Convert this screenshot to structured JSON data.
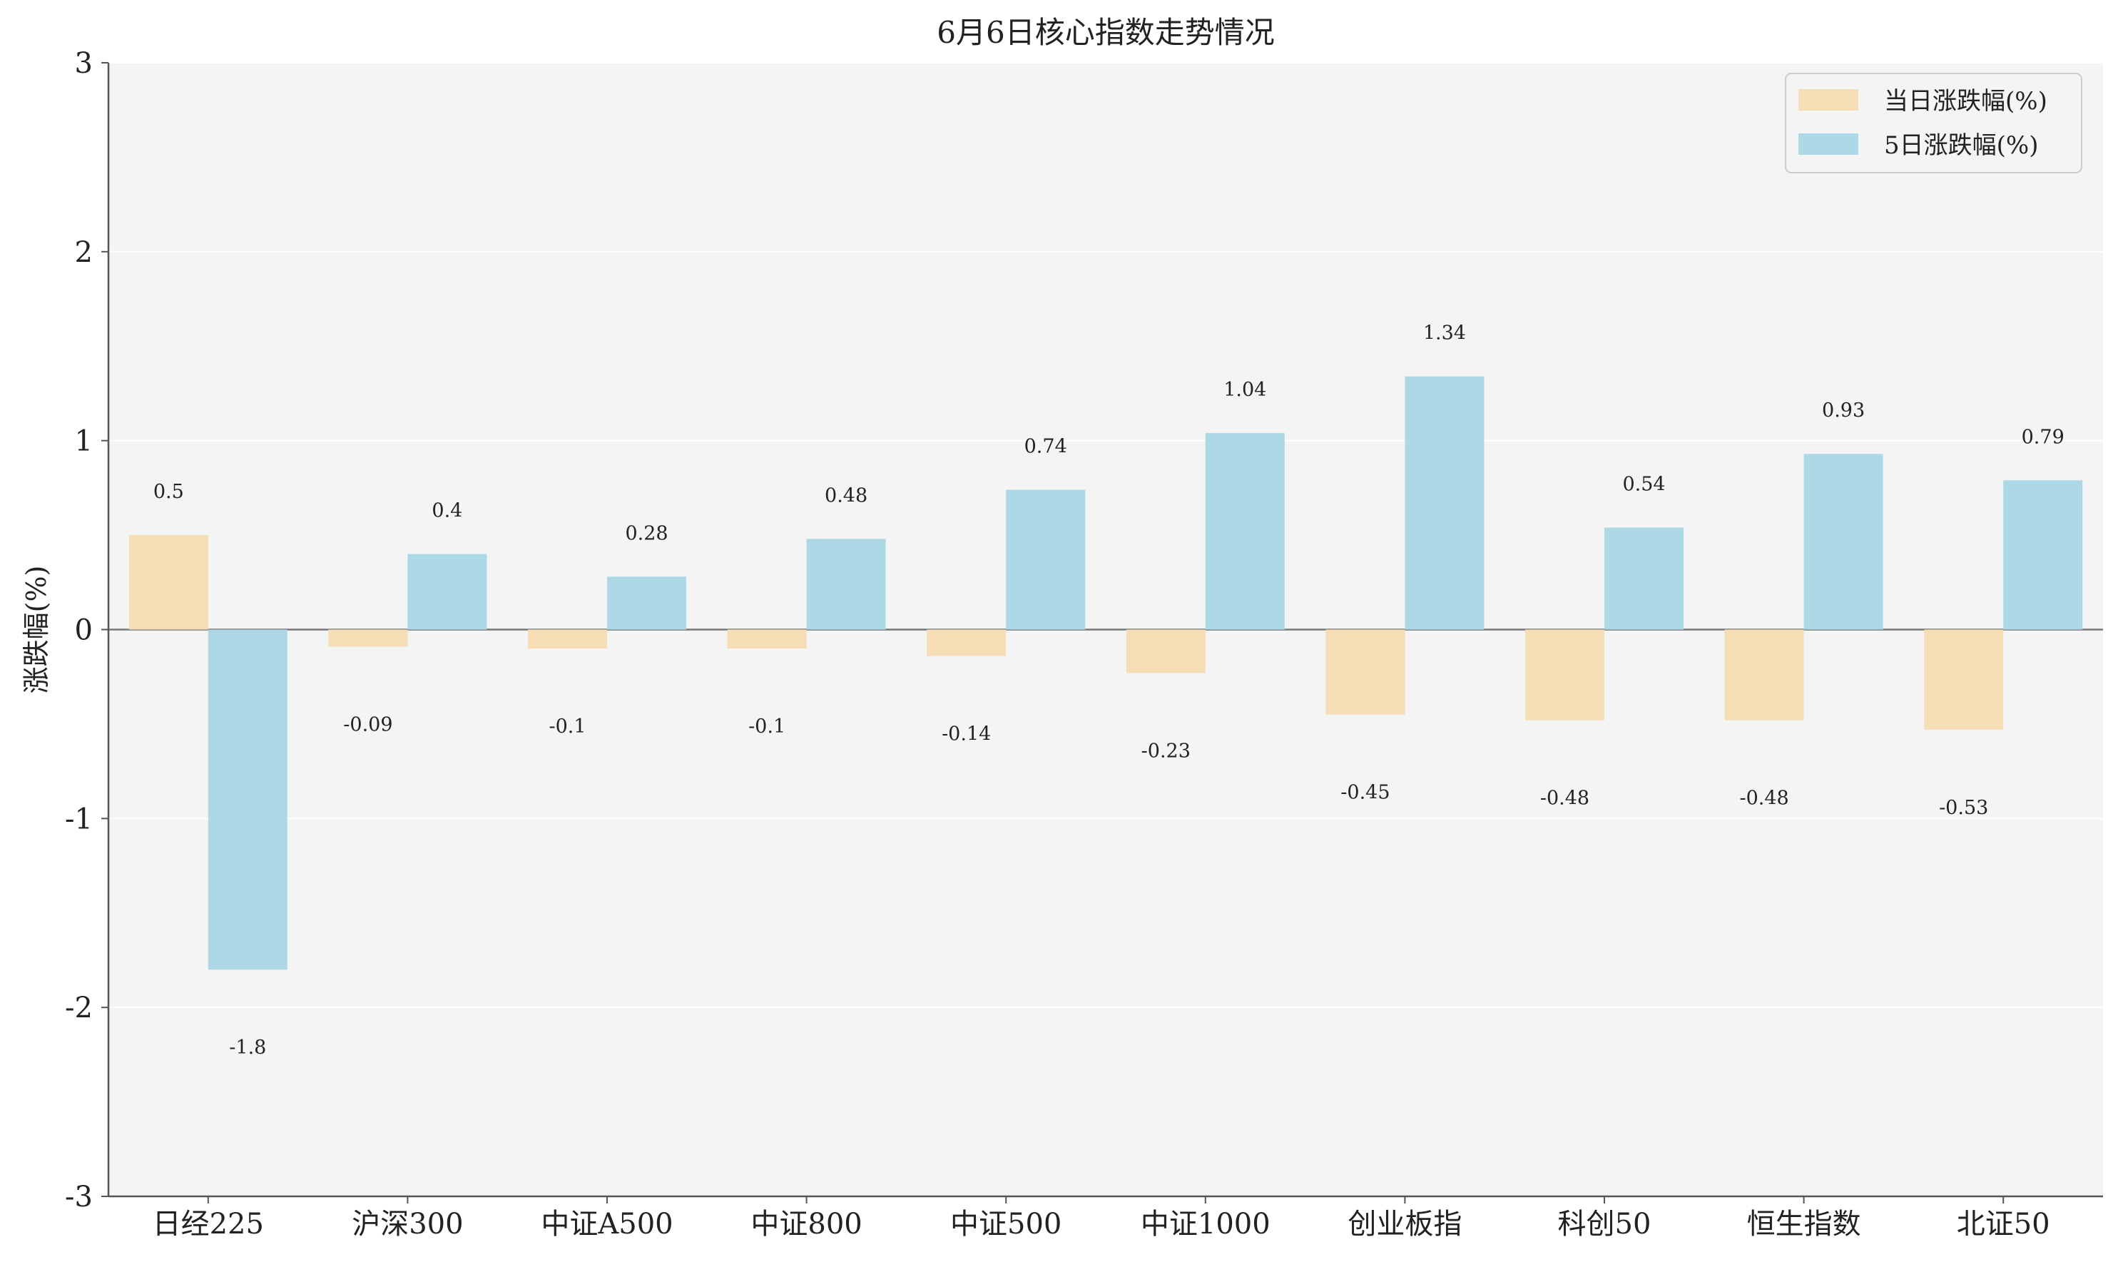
{
  "chart_data": {
    "type": "bar",
    "title": "6月6日核心指数走势情况",
    "xlabel": "",
    "ylabel": "涨跌幅(%)",
    "ylim": [
      -3,
      3
    ],
    "yticks": [
      "3",
      "2",
      "1",
      "0",
      "-1",
      "-2",
      "-3"
    ],
    "grid": "horizontal",
    "legend_position": "top-right",
    "categories": [
      "日经225",
      "沪深300",
      "中证A500",
      "中证800",
      "中证500",
      "中证1000",
      "创业板指",
      "科创50",
      "恒生指数",
      "北证50"
    ],
    "series": [
      {
        "name": "当日涨跌幅(%)",
        "color": "#F5DDB5",
        "values": [
          0.5,
          -0.09,
          -0.1,
          -0.1,
          -0.14,
          -0.23,
          -0.45,
          -0.48,
          -0.48,
          -0.53
        ],
        "labels": [
          "0.5",
          "-0.09",
          "-0.1",
          "-0.1",
          "-0.14",
          "-0.23",
          "-0.45",
          "-0.48",
          "-0.48",
          "-0.53"
        ]
      },
      {
        "name": "5日涨跌幅(%)",
        "color": "#ADD8E6",
        "values": [
          -1.8,
          0.4,
          0.28,
          0.48,
          0.74,
          1.04,
          1.34,
          0.54,
          0.93,
          0.79
        ],
        "labels": [
          "-1.8",
          "0.4",
          "0.28",
          "0.48",
          "0.74",
          "1.04",
          "1.34",
          "0.54",
          "0.93",
          "0.79"
        ]
      }
    ],
    "colors": {
      "plot_background": "#F4F4F4",
      "grid": "#FFFFFF",
      "axis": "#555555",
      "zero_line": "#777777"
    }
  }
}
